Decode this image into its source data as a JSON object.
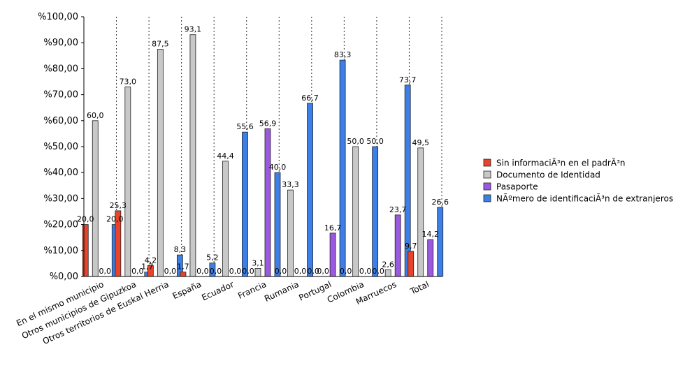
{
  "chart_data": {
    "type": "bar",
    "categories": [
      "En el mismo municipio",
      "Otros municipios de Gipuzkoa",
      "Otros territorios de Euskal Herria",
      "España",
      "Ecuador",
      "Francia",
      "Rumania",
      "Portugal",
      "Colombia",
      "Marruecos",
      "Total"
    ],
    "series": [
      {
        "name": "Sin informaciÃ³n en el padrÃ³n",
        "color": "#e8442b",
        "values": [
          20.0,
          25.3,
          4.2,
          1.7,
          0.0,
          0.0,
          0.0,
          0.0,
          0.0,
          0.0,
          9.7
        ],
        "labels": [
          "20,0",
          "25,3",
          "4,2",
          "1,7",
          "0,0",
          "0,0",
          "0,0",
          "0,0",
          "0,0",
          "0,0",
          "9,7"
        ]
      },
      {
        "name": "Documento de Identidad",
        "color": "#c8c8c8",
        "values": [
          60.0,
          73.0,
          87.5,
          93.1,
          44.4,
          3.1,
          33.3,
          0.0,
          50.0,
          2.6,
          49.5
        ],
        "labels": [
          "60,0",
          "73,0",
          "87,5",
          "93,1",
          "44,4",
          "3,1",
          "33,3",
          "0,0",
          "50,0",
          "2,6",
          "49,5"
        ]
      },
      {
        "name": "Pasaporte",
        "color": "#9b59e0",
        "values": [
          0.0,
          0.0,
          0.0,
          0.0,
          0.0,
          56.9,
          0.0,
          16.7,
          0.0,
          23.7,
          14.2
        ],
        "labels": [
          "0,0",
          "0,0",
          "0,0",
          "0,0",
          "0,0",
          "56,9",
          "0,0",
          "16,7",
          "0,0",
          "23,7",
          "14,2"
        ]
      },
      {
        "name": "NÃºmero de identificaciÃ³n de extranjeros",
        "color": "#3d7fe8",
        "values": [
          20.0,
          1.7,
          8.3,
          5.2,
          55.6,
          40.0,
          66.7,
          83.3,
          50.0,
          73.7,
          26.6
        ],
        "labels": [
          "20,0",
          "1,7",
          "8,3",
          "5,2",
          "55,6",
          "40,0",
          "66,7",
          "83,3",
          "50,0",
          "73,7",
          "26,6"
        ]
      }
    ],
    "ylim": [
      0,
      100
    ],
    "y_ticks": [
      0,
      10,
      20,
      30,
      40,
      50,
      60,
      70,
      80,
      90,
      100
    ],
    "y_tick_labels": [
      "%0,00",
      "%10,00",
      "%20,00",
      "%30,00",
      "%40,00",
      "%50,00",
      "%60,00",
      "%70,00",
      "%80,00",
      "%90,00",
      "%100,00"
    ],
    "grid": "vertical dotted",
    "legend_position": "right"
  }
}
